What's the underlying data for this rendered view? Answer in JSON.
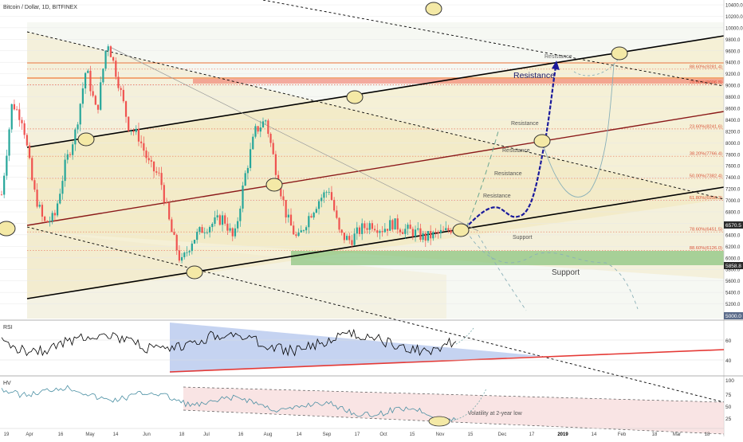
{
  "header": {
    "symbol_title": "Bitcoin / Dollar, 1D, BITFINEX"
  },
  "chart_data": [
    {
      "type": "line",
      "panel": "price",
      "title": "Bitcoin / Dollar, 1D, BITFINEX",
      "ylim": [
        5000,
        10400
      ],
      "y_ticks": [
        5200,
        5400,
        5600,
        5800,
        6000,
        6200,
        6400,
        6600,
        6800,
        7000,
        7200,
        7400,
        7600,
        7800,
        8000,
        8200,
        8400,
        8600,
        8800,
        9000,
        9200,
        9400,
        9600,
        9800,
        10000,
        10200,
        10400
      ],
      "x_tick_labels": [
        "19",
        "Apr",
        "16",
        "May",
        "14",
        "Jun",
        "18",
        "Jul",
        "16",
        "Aug",
        "14",
        "Sep",
        "17",
        "Oct",
        "15",
        "Nov",
        "15",
        "Dec",
        "17",
        "2019",
        "14",
        "Feb",
        "18",
        "Mar",
        "18"
      ],
      "series": [
        {
          "values": [
            7100,
            8700,
            8400,
            7200,
            6600,
            6700,
            7600,
            8200,
            9300,
            8500,
            9800,
            9100,
            8300,
            8100,
            7600,
            7400,
            6500,
            5900,
            6300,
            6500,
            6600,
            6700,
            6300,
            7400,
            8200,
            8400,
            7500,
            6700,
            6300,
            6700,
            7000,
            7200,
            6400,
            6300,
            6500,
            6600,
            6500,
            6600,
            6500,
            6450,
            6350,
            6400,
            6450,
            6570
          ]
        }
      ],
      "current_price_label": "6570.5",
      "price_badges": [
        "5858.8",
        "5000.0"
      ],
      "fibonacci_levels": [
        {
          "label": "88.60%(9281.4)",
          "value": 9281.4
        },
        {
          "label": "23.60%(9006.3)",
          "value": 9006.3
        },
        {
          "label": "0.00%(9006.5)",
          "value": 9006.5
        },
        {
          "label": "23.60%(8241.6)",
          "value": 8241.6
        },
        {
          "label": "38.20%(7766.4)",
          "value": 7766.4
        },
        {
          "label": "50.00%(7382.4)",
          "value": 7382.4
        },
        {
          "label": "61.80%(6998.3)",
          "value": 6998.3
        },
        {
          "label": "78.60%(6451.5)",
          "value": 6451.5
        },
        {
          "label": "88.60%(6126.0)",
          "value": 6126.0
        }
      ],
      "annotations": {
        "resistance_small_1": "Resistance",
        "resistance_large": "Resistance",
        "resistance_small_2": "Resistance",
        "resistance_small_3": "Resistance",
        "resistance_small_4": "Resistance",
        "resistance_small_5": "Resistance",
        "support_small": "Support",
        "support_large": "Support"
      },
      "colors": {
        "up_candle": "#26a69a",
        "down_candle": "#ef5350",
        "resistance_band": "#f06a5a",
        "support_band": "#86c27b",
        "channel_fill": "#f5e6b3",
        "projection": "#1a1a9c",
        "trendline": "#000000",
        "fib_line": "#e8735c",
        "circle_fill": "#f4e9a6"
      }
    },
    {
      "type": "line",
      "panel": "rsi",
      "title": "RSI",
      "y_ticks": [
        40.0,
        60.0
      ],
      "colors": {
        "line": "#000000",
        "triangle": "#9fb5e8",
        "trendline": "#e53935"
      }
    },
    {
      "type": "line",
      "panel": "volatility",
      "title": "HV",
      "y_ticks": [
        25.0,
        50.0,
        75.0,
        100.0
      ],
      "annotation": "Volatility at 2-year low",
      "colors": {
        "line": "#4a8fa3",
        "channel": "#f6d9d9"
      }
    }
  ]
}
